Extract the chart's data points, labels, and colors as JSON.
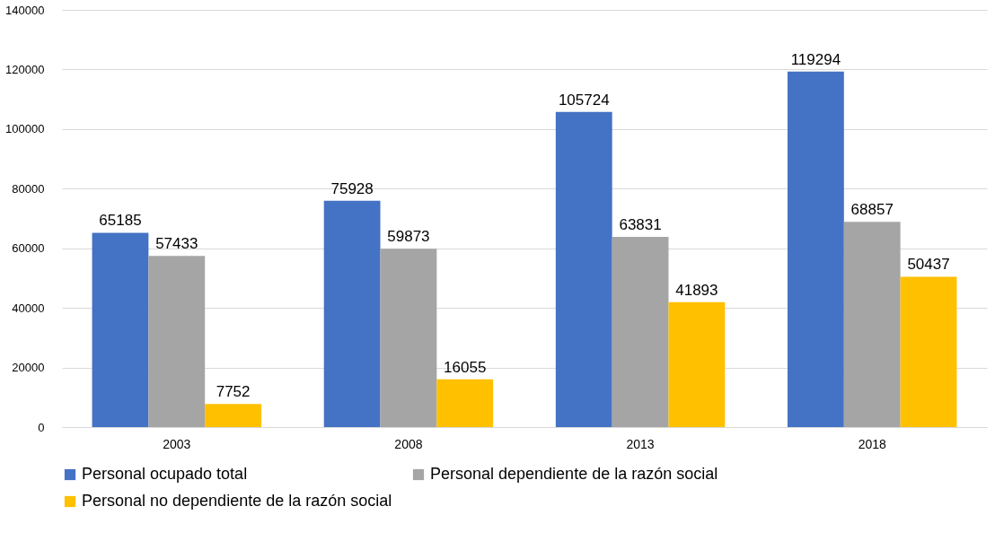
{
  "chart_data": {
    "type": "bar",
    "categories": [
      "2003",
      "2008",
      "2013",
      "2018"
    ],
    "series": [
      {
        "name": "Personal ocupado total",
        "color": "#4472c4",
        "values": [
          65185,
          75928,
          105724,
          119294
        ]
      },
      {
        "name": "Personal dependiente de la razón social",
        "color": "#a5a5a5",
        "values": [
          57433,
          59873,
          63831,
          68857
        ]
      },
      {
        "name": "Personal no dependiente de la razón social",
        "color": "#ffc000",
        "values": [
          7752,
          16055,
          41893,
          50437
        ]
      }
    ],
    "ylim": [
      0,
      140000
    ],
    "yticks": [
      0,
      20000,
      40000,
      60000,
      80000,
      100000,
      120000,
      140000
    ],
    "grid": "y",
    "legend": "bottom",
    "data_labels": true
  }
}
